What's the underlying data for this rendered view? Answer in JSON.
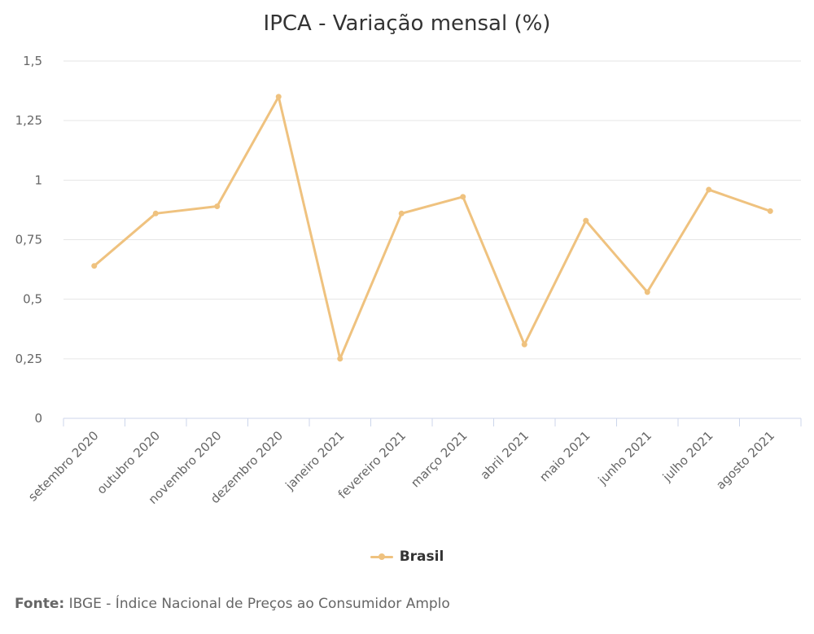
{
  "colors": {
    "series": "#efc27f",
    "grid": "#e6e6e6",
    "text": "#666666"
  },
  "chart_data": {
    "type": "line",
    "title": "IPCA - Variação mensal (%)",
    "categories": [
      "setembro 2020",
      "outubro 2020",
      "novembro 2020",
      "dezembro 2020",
      "janeiro 2021",
      "fevereiro 2021",
      "março 2021",
      "abril 2021",
      "maio 2021",
      "junho 2021",
      "julho 2021",
      "agosto 2021"
    ],
    "series": [
      {
        "name": "Brasil",
        "values": [
          0.64,
          0.86,
          0.89,
          1.35,
          0.25,
          0.86,
          0.93,
          0.31,
          0.83,
          0.53,
          0.96,
          0.87
        ]
      }
    ],
    "ylim": [
      0,
      1.5
    ],
    "yticks": [
      0,
      0.25,
      0.5,
      0.75,
      1,
      1.25,
      1.5
    ],
    "ytick_labels": [
      "0",
      "0,25",
      "0,5",
      "0,75",
      "1",
      "1,25",
      "1,5"
    ],
    "grid": true,
    "legend": "bottom-center"
  },
  "legend": {
    "label": "Brasil"
  },
  "footer": {
    "label": "Fonte:",
    "text": " IBGE - Índice Nacional de Preços ao Consumidor Amplo"
  }
}
